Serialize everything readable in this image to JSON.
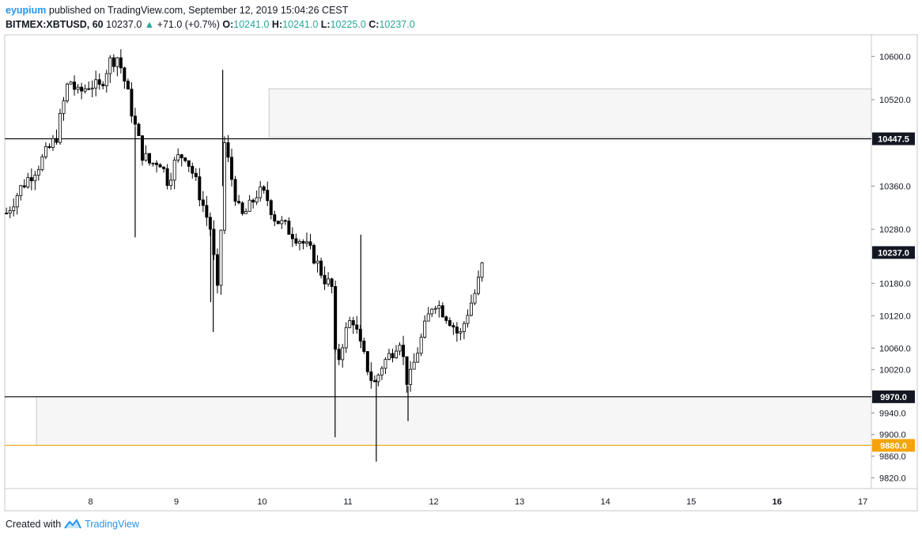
{
  "header": {
    "author": "eyupium",
    "published": "published on TradingView.com, September 12, 2019 15:04:26 CEST",
    "symbol": "BITMEX:XBTUSD, 60",
    "last": "10237.0",
    "change": "+71.0 (+0.7%)",
    "o_label": "O:",
    "o_value": "10241.0",
    "h_label": "H:",
    "h_value": "10241.0",
    "l_label": "L:",
    "l_value": "10225.0",
    "c_label": "C:",
    "c_value": "10237.0"
  },
  "footer": {
    "created_with": "Created with",
    "brand": "TradingView"
  },
  "colors": {
    "up": "#ffffff",
    "down": "#000000",
    "wick": "#000000",
    "level": "#000000",
    "orange": "#f4a40a",
    "zone": "#f6f6f6"
  },
  "chart_data": {
    "type": "candlestick",
    "title": "BITMEX:XBTUSD, 60",
    "x_ticks": [
      "8",
      "9",
      "10",
      "11",
      "12",
      "13",
      "14",
      "15",
      "16",
      "17"
    ],
    "bold_x_ticks": [
      "16"
    ],
    "y_ticks": [
      "10600.0",
      "10520.0",
      "10360.0",
      "10280.0",
      "10180.0",
      "10120.0",
      "10060.0",
      "10020.0",
      "9940.0",
      "9900.0",
      "9860.0",
      "9820.0"
    ],
    "ylim": [
      9800,
      10640
    ],
    "xlim_days": [
      7.0,
      17.1
    ],
    "price_labels": [
      {
        "value": 10447.5,
        "text": "10447.5",
        "style": "black"
      },
      {
        "value": 10237.0,
        "text": "10237.0",
        "style": "black"
      },
      {
        "value": 9970.0,
        "text": "9970.0",
        "style": "black"
      },
      {
        "value": 9880.0,
        "text": "9880.0",
        "style": "orange"
      }
    ],
    "horizontal_levels": [
      {
        "value": 10447.5,
        "color": "black"
      },
      {
        "value": 9970.0,
        "color": "black"
      },
      {
        "value": 9880.0,
        "color": "orange"
      }
    ],
    "zones": [
      {
        "x_start": 10.08,
        "x_end": 17.1,
        "y_top": 10540,
        "y_bottom": 10450
      },
      {
        "x_start": 7.37,
        "x_end": 17.1,
        "y_top": 9970,
        "y_bottom": 9880
      }
    ],
    "series_path": [
      [
        7.02,
        10310
      ],
      [
        7.2,
        10360
      ],
      [
        7.4,
        10400
      ],
      [
        7.6,
        10450
      ],
      [
        7.68,
        10510
      ],
      [
        7.75,
        10560
      ],
      [
        7.85,
        10530
      ],
      [
        8.0,
        10550
      ],
      [
        8.1,
        10540
      ],
      [
        8.22,
        10590
      ],
      [
        8.32,
        10600
      ],
      [
        8.42,
        10540
      ],
      [
        8.52,
        10470
      ],
      [
        8.6,
        10420
      ],
      [
        8.7,
        10400
      ],
      [
        8.8,
        10410
      ],
      [
        8.9,
        10370
      ],
      [
        9.0,
        10410
      ],
      [
        9.1,
        10420
      ],
      [
        9.2,
        10380
      ],
      [
        9.3,
        10330
      ],
      [
        9.4,
        10280
      ],
      [
        9.48,
        10160
      ],
      [
        9.52,
        10280
      ],
      [
        9.56,
        10440
      ],
      [
        9.65,
        10370
      ],
      [
        9.75,
        10300
      ],
      [
        9.85,
        10320
      ],
      [
        9.95,
        10350
      ],
      [
        10.05,
        10340
      ],
      [
        10.15,
        10300
      ],
      [
        10.3,
        10280
      ],
      [
        10.45,
        10260
      ],
      [
        10.6,
        10230
      ],
      [
        10.72,
        10190
      ],
      [
        10.82,
        10170
      ],
      [
        10.86,
        10020
      ],
      [
        10.95,
        10080
      ],
      [
        11.05,
        10120
      ],
      [
        11.15,
        10060
      ],
      [
        11.3,
        9990
      ],
      [
        11.4,
        10030
      ],
      [
        11.5,
        10050
      ],
      [
        11.6,
        10080
      ],
      [
        11.7,
        9990
      ],
      [
        11.8,
        10050
      ],
      [
        11.9,
        10100
      ],
      [
        12.0,
        10150
      ],
      [
        12.1,
        10130
      ],
      [
        12.2,
        10110
      ],
      [
        12.3,
        10080
      ],
      [
        12.4,
        10130
      ],
      [
        12.5,
        10170
      ],
      [
        12.6,
        10237
      ]
    ],
    "wick_spikes": [
      {
        "x": 8.52,
        "low": 10265
      },
      {
        "x": 9.4,
        "low": 10145
      },
      {
        "x": 9.43,
        "low": 10090
      },
      {
        "x": 9.54,
        "high": 10575
      },
      {
        "x": 10.85,
        "low": 9895
      },
      {
        "x": 11.33,
        "low": 9850
      },
      {
        "x": 11.7,
        "low": 9925
      },
      {
        "x": 11.15,
        "high": 10270
      }
    ]
  }
}
